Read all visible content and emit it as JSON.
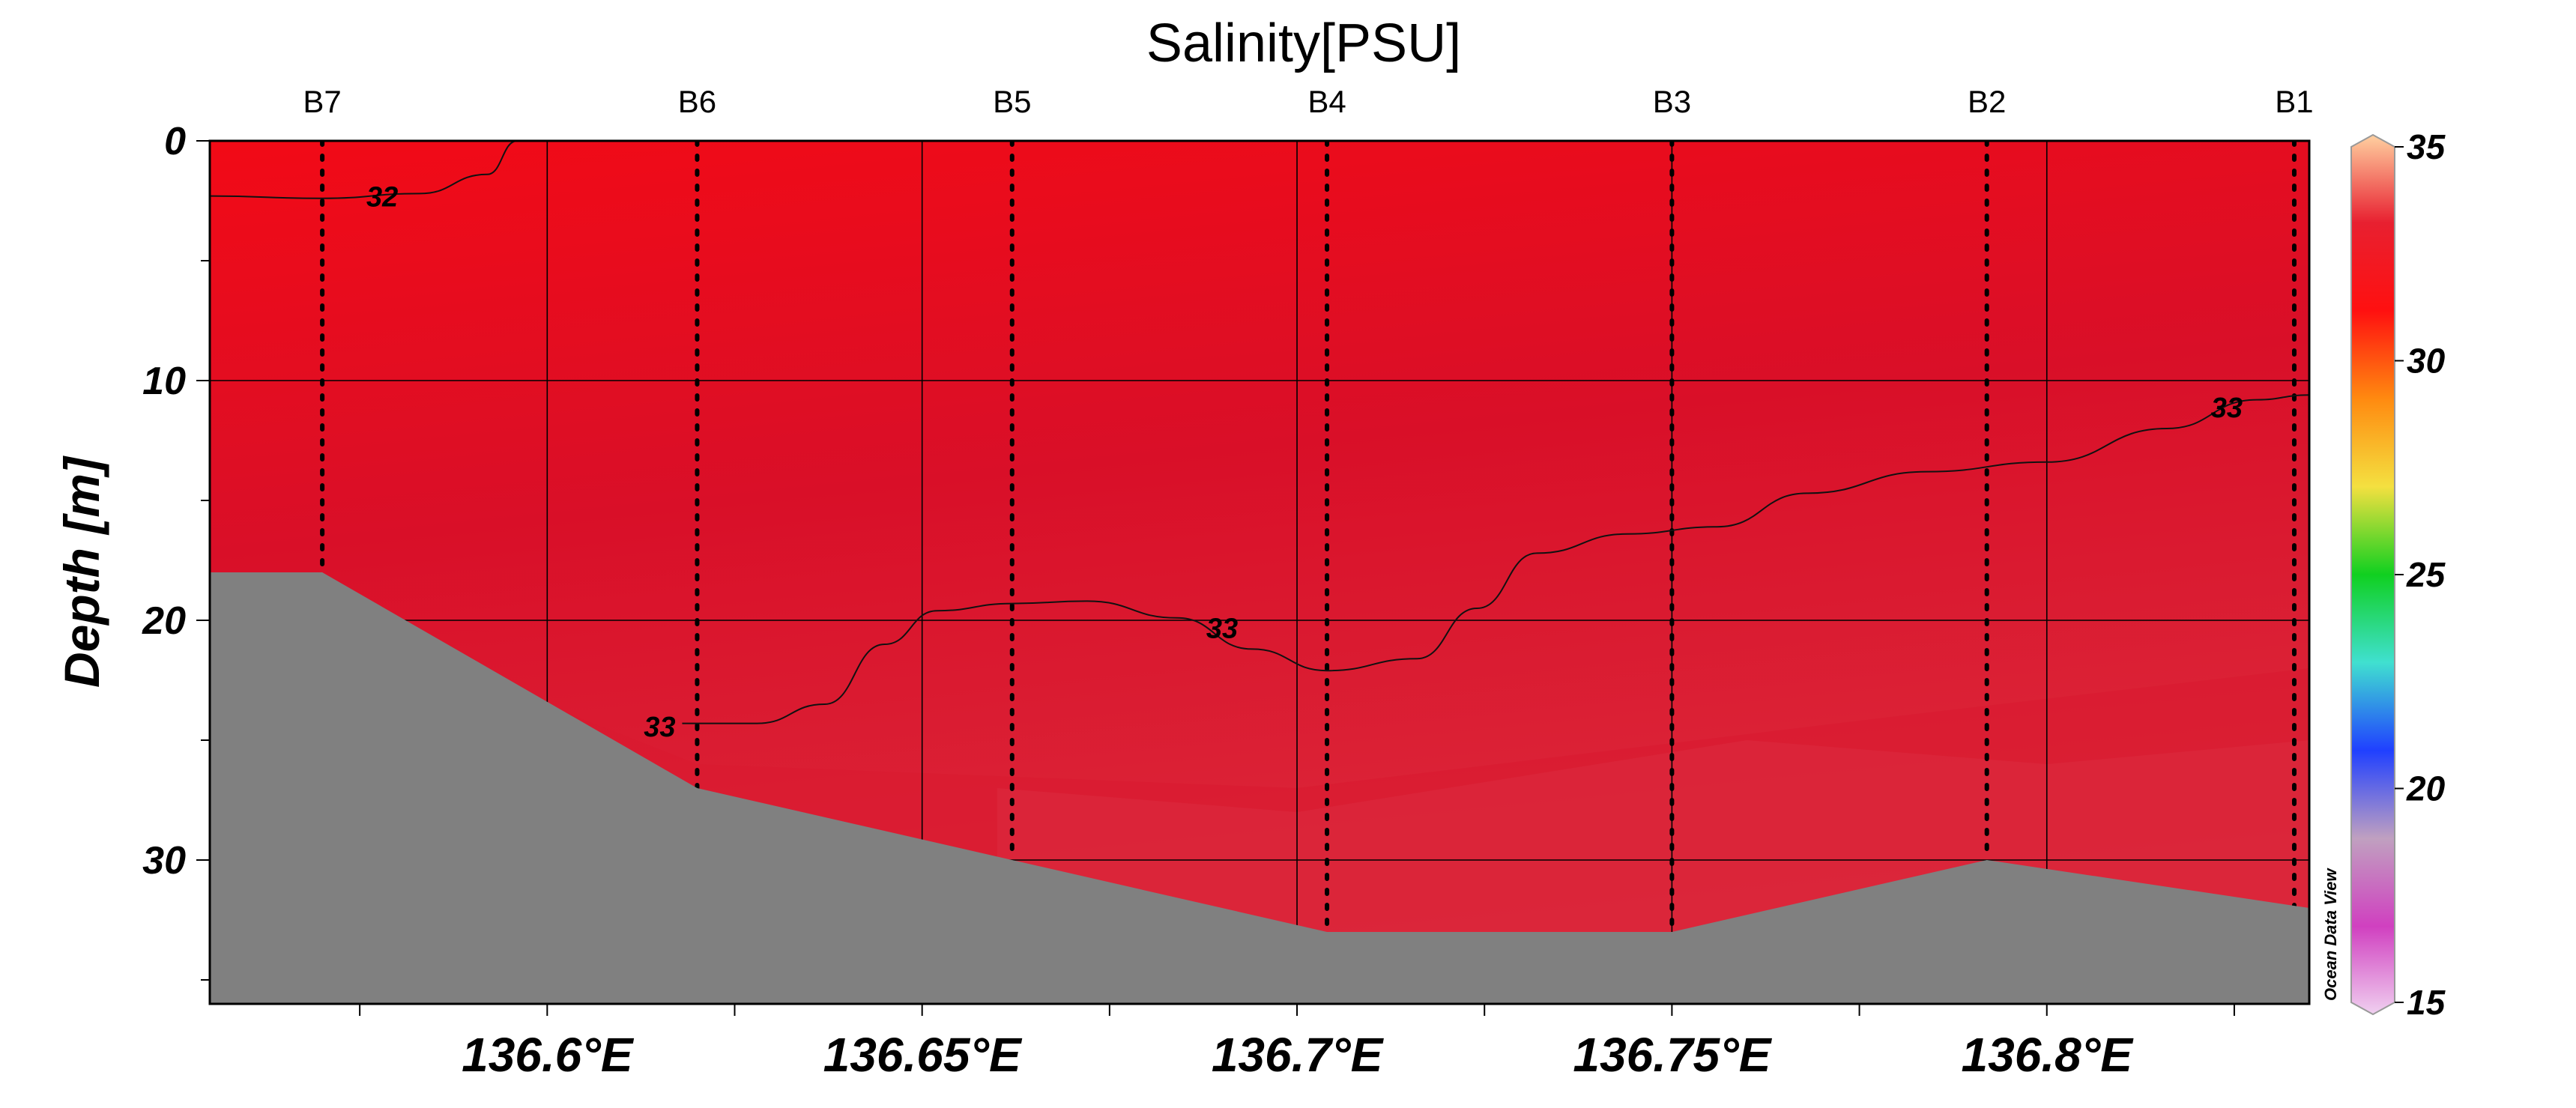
{
  "chart_data": {
    "type": "heatmap",
    "title": "Salinity[PSU]",
    "ylabel": "Depth [m]",
    "xlabel": "",
    "xlim": [
      136.555,
      136.835
    ],
    "ylim": [
      36,
      0
    ],
    "x_ticks": [
      {
        "value": 136.6,
        "label": "136.6°E"
      },
      {
        "value": 136.65,
        "label": "136.65°E"
      },
      {
        "value": 136.7,
        "label": "136.7°E"
      },
      {
        "value": 136.75,
        "label": "136.75°E"
      },
      {
        "value": 136.8,
        "label": "136.8°E"
      }
    ],
    "y_ticks": [
      {
        "value": 0,
        "label": "0"
      },
      {
        "value": 10,
        "label": "10"
      },
      {
        "value": 20,
        "label": "20"
      },
      {
        "value": 30,
        "label": "30"
      }
    ],
    "stations": [
      {
        "name": "B7",
        "x": 136.57,
        "bottom_depth": 18
      },
      {
        "name": "B6",
        "x": 136.62,
        "bottom_depth": 27
      },
      {
        "name": "B5",
        "x": 136.662,
        "bottom_depth": 30
      },
      {
        "name": "B4",
        "x": 136.704,
        "bottom_depth": 33
      },
      {
        "name": "B3",
        "x": 136.75,
        "bottom_depth": 33
      },
      {
        "name": "B2",
        "x": 136.792,
        "bottom_depth": 30
      },
      {
        "name": "B1",
        "x": 136.833,
        "bottom_depth": 32
      }
    ],
    "contours": [
      {
        "level": "32",
        "points": [
          [
            136.555,
            2.3
          ],
          [
            136.57,
            2.4
          ],
          [
            136.583,
            2.2
          ],
          [
            136.592,
            1.4
          ],
          [
            136.596,
            0
          ]
        ],
        "label_at": [
          136.578,
          2.3
        ]
      },
      {
        "level": "33",
        "points": [
          [
            136.618,
            24.3
          ],
          [
            136.628,
            24.3
          ],
          [
            136.637,
            23.5
          ],
          [
            136.645,
            21.0
          ],
          [
            136.652,
            19.6
          ],
          [
            136.662,
            19.3
          ],
          [
            136.672,
            19.2
          ],
          [
            136.684,
            19.9
          ],
          [
            136.694,
            21.2
          ],
          [
            136.704,
            22.1
          ],
          [
            136.716,
            21.6
          ],
          [
            136.724,
            19.5
          ],
          [
            136.732,
            17.2
          ],
          [
            136.744,
            16.4
          ],
          [
            136.756,
            16.1
          ],
          [
            136.768,
            14.7
          ],
          [
            136.784,
            13.8
          ],
          [
            136.8,
            13.4
          ],
          [
            136.816,
            12.0
          ],
          [
            136.828,
            10.8
          ],
          [
            136.835,
            10.6
          ]
        ],
        "label_at": [
          136.69,
          20.3
        ],
        "extra_labels": [
          [
            136.615,
            24.4
          ],
          [
            136.824,
            11.1
          ]
        ]
      }
    ],
    "seafloor": [
      [
        136.555,
        18
      ],
      [
        136.57,
        18
      ],
      [
        136.62,
        27
      ],
      [
        136.662,
        30
      ],
      [
        136.704,
        33
      ],
      [
        136.75,
        33
      ],
      [
        136.792,
        30
      ],
      [
        136.835,
        32
      ]
    ],
    "salinity_field_note": "",
    "colorbar": {
      "min": 15,
      "max": 35,
      "ticks": [
        "35",
        "30",
        "25",
        "20",
        "15"
      ],
      "colors": [
        "#ffd0a0",
        "#e82030",
        "#ff1010",
        "#ff8a10",
        "#f4e040",
        "#10d020",
        "#40e0d0",
        "#2040ff",
        "#c0a0c0",
        "#d040c0",
        "#f0d0f0"
      ]
    },
    "field_colors": {
      "surface": "#ee0a1c",
      "mid": "#d8102a",
      "deep": "#dc2a3e",
      "seafloor": "#808080"
    },
    "watermark": "Ocean Data View"
  }
}
